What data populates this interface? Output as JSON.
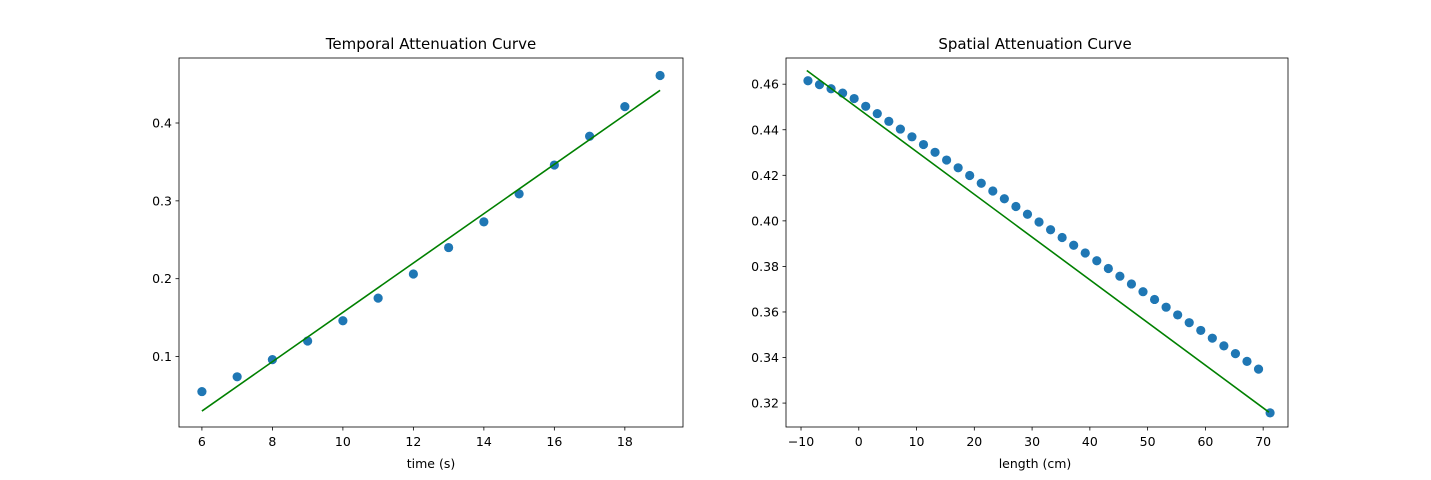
{
  "chart_data": [
    {
      "type": "scatter",
      "title": "Temporal Attenuation Curve",
      "xlabel": "time (s)",
      "ylabel": "",
      "xlim": [
        5.35,
        19.65
      ],
      "ylim": [
        0.0095,
        0.4835
      ],
      "xticks": [
        "6",
        "8",
        "10",
        "12",
        "14",
        "16",
        "18"
      ],
      "yticks": [
        "0.1",
        "0.2",
        "0.3",
        "0.4"
      ],
      "grid": false,
      "series": [
        {
          "kind": "scatter",
          "color": "#1f77b4",
          "x": [
            6,
            7,
            8,
            9,
            10,
            11,
            12,
            13,
            14,
            15,
            16,
            17,
            18,
            19
          ],
          "y": [
            0.055,
            0.074,
            0.096,
            0.12,
            0.146,
            0.175,
            0.206,
            0.24,
            0.273,
            0.309,
            0.346,
            0.383,
            0.421,
            0.461
          ]
        },
        {
          "kind": "line",
          "color": "#008000",
          "x": [
            6,
            19
          ],
          "y": [
            0.03,
            0.442
          ]
        }
      ]
    },
    {
      "type": "scatter",
      "title": "Spatial Attenuation Curve",
      "xlabel": "length (cm)",
      "ylabel": "",
      "xlim": [
        -12.6,
        74.3
      ],
      "ylim": [
        0.3095,
        0.4715
      ],
      "xticks": [
        "−10",
        "0",
        "10",
        "20",
        "30",
        "40",
        "50",
        "60",
        "70"
      ],
      "yticks": [
        "0.32",
        "0.34",
        "0.36",
        "0.38",
        "0.40",
        "0.42",
        "0.44",
        "0.46"
      ],
      "grid": false,
      "series": [
        {
          "kind": "scatter",
          "color": "#1f77b4",
          "x": [
            -8.8,
            -6.8,
            -4.8,
            -2.8,
            -0.8,
            1.2,
            3.2,
            5.2,
            7.2,
            9.2,
            11.2,
            13.2,
            15.2,
            17.2,
            19.2,
            21.2,
            23.2,
            25.2,
            27.2,
            29.2,
            31.2,
            33.2,
            35.2,
            37.2,
            39.2,
            41.2,
            43.2,
            45.2,
            47.2,
            49.2,
            51.2,
            53.2,
            55.2,
            57.2,
            59.2,
            61.2,
            63.2,
            65.2,
            67.2,
            69.2,
            71.2
          ],
          "y": [
            0.4615,
            0.4598,
            0.458,
            0.4561,
            0.4537,
            0.4503,
            0.4471,
            0.4437,
            0.4403,
            0.4369,
            0.4335,
            0.4301,
            0.4267,
            0.4233,
            0.4199,
            0.4165,
            0.4131,
            0.4097,
            0.4063,
            0.4029,
            0.3995,
            0.3961,
            0.3927,
            0.3893,
            0.3859,
            0.3825,
            0.3791,
            0.3757,
            0.3723,
            0.3689,
            0.3655,
            0.3621,
            0.3587,
            0.3553,
            0.3519,
            0.3485,
            0.3451,
            0.3417,
            0.3383,
            0.3349,
            0.3157
          ]
        },
        {
          "kind": "line",
          "color": "#008000",
          "x": [
            -9,
            71
          ],
          "y": [
            0.466,
            0.316
          ]
        }
      ]
    }
  ]
}
